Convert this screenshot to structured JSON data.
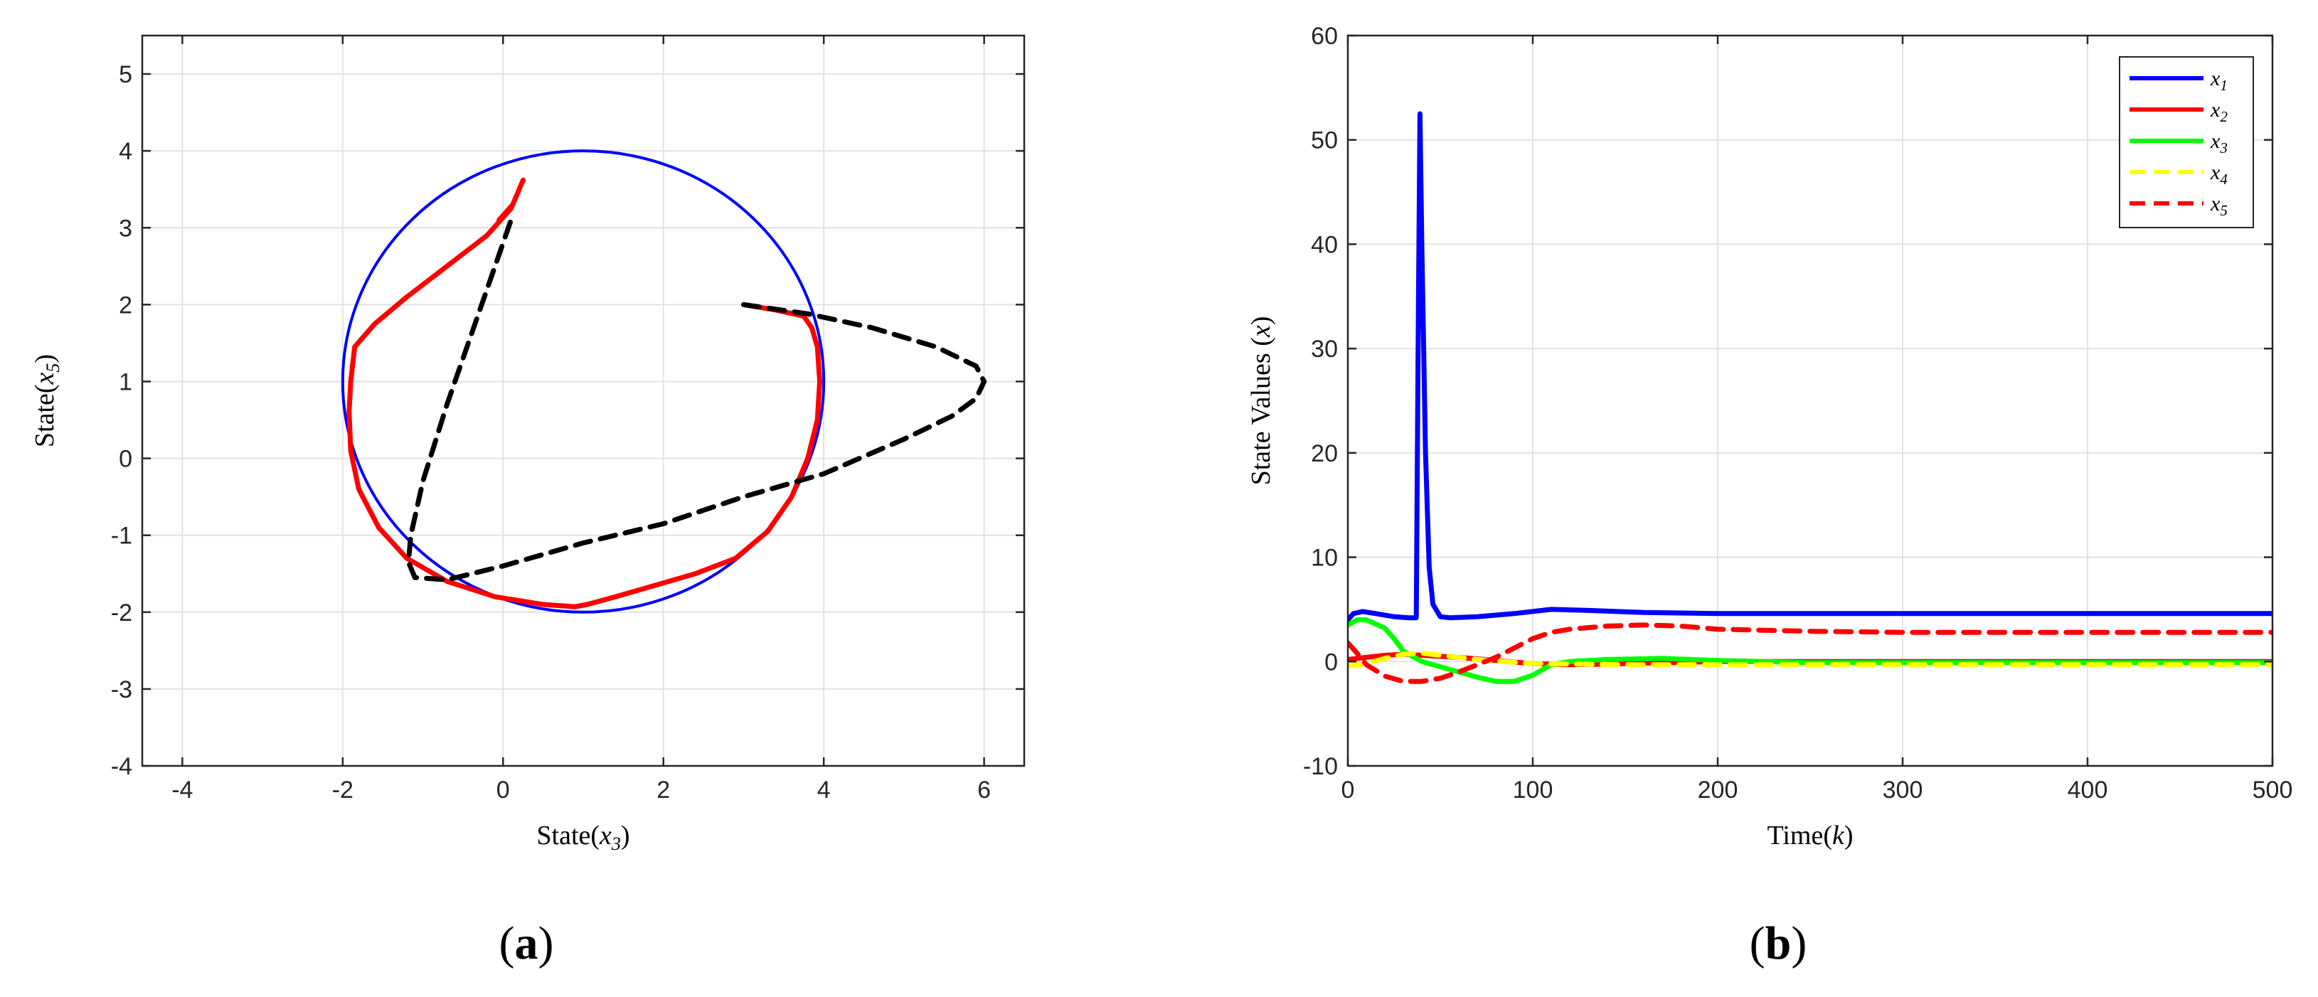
{
  "panels": [
    {
      "label_open": "(",
      "label_letter": "a",
      "label_close": ")"
    },
    {
      "label_open": "(",
      "label_letter": "b",
      "label_close": ")"
    }
  ],
  "chart_data": [
    {
      "type": "line",
      "panel": "a",
      "xlabel": {
        "prefix": "State(",
        "var": "x",
        "sub": "3",
        "suffix": ")"
      },
      "ylabel": {
        "prefix": "State(",
        "var": "x",
        "sub": "5",
        "suffix": ")"
      },
      "xlim": [
        -4.5,
        6.5
      ],
      "ylim": [
        -4,
        5.5
      ],
      "xticks": [
        -4,
        -2,
        0,
        2,
        4,
        6
      ],
      "yticks": [
        -4,
        -3,
        -2,
        -1,
        0,
        1,
        2,
        3,
        4,
        5
      ],
      "grid": true,
      "series": [
        {
          "kind": "circle",
          "center": [
            1,
            1
          ],
          "radius": 3,
          "color": "#0000ff",
          "style": "solid"
        },
        {
          "kind": "path",
          "color": "#ff0000",
          "style": "solid",
          "x": [
            3.0,
            3.4,
            3.75,
            3.85,
            3.92,
            3.95,
            3.92,
            3.8,
            3.6,
            3.3,
            2.9,
            2.4,
            1.9,
            1.4,
            1.05,
            0.9,
            0.5,
            -0.1,
            -0.7,
            -1.2,
            -1.55,
            -1.8,
            -1.9,
            -1.92,
            -1.9,
            -1.85,
            -1.6,
            -1.2,
            -0.7,
            -0.2,
            0.1,
            0.25,
            0.12,
            -0.05
          ],
          "y": [
            2.0,
            1.93,
            1.85,
            1.7,
            1.45,
            1.0,
            0.5,
            0.0,
            -0.5,
            -0.95,
            -1.3,
            -1.5,
            -1.65,
            -1.8,
            -1.9,
            -1.93,
            -1.9,
            -1.8,
            -1.6,
            -1.3,
            -0.9,
            -0.4,
            0.1,
            0.6,
            1.0,
            1.45,
            1.75,
            2.1,
            2.5,
            2.9,
            3.25,
            3.62,
            3.3,
            3.1
          ]
        },
        {
          "kind": "path",
          "color": "#000000",
          "style": "dashed",
          "x": [
            3.0,
            3.8,
            4.6,
            5.4,
            5.9,
            6.0,
            5.9,
            5.6,
            5.0,
            4.0,
            3.0,
            2.0,
            1.0,
            0.0,
            -0.7,
            -1.1,
            -1.18,
            -1.15,
            -1.0,
            -0.7,
            -0.4,
            -0.1,
            0.1
          ],
          "y": [
            2.0,
            1.88,
            1.7,
            1.45,
            1.2,
            1.0,
            0.78,
            0.55,
            0.25,
            -0.2,
            -0.5,
            -0.85,
            -1.1,
            -1.4,
            -1.58,
            -1.55,
            -1.35,
            -1.0,
            -0.3,
            0.7,
            1.6,
            2.5,
            3.1
          ]
        }
      ]
    },
    {
      "type": "line",
      "panel": "b",
      "xlabel": {
        "prefix": "Time(",
        "var": "k",
        "sub": "",
        "suffix": ")"
      },
      "ylabel": {
        "prefix": "State Values (",
        "var": "x",
        "sub": "",
        "suffix": ")"
      },
      "xlim": [
        0,
        500
      ],
      "ylim": [
        -10,
        60
      ],
      "xticks": [
        0,
        100,
        200,
        300,
        400,
        500
      ],
      "yticks": [
        -10,
        0,
        10,
        20,
        30,
        40,
        50,
        60
      ],
      "grid": true,
      "legend_position": "top-right",
      "series": [
        {
          "name": "x",
          "sub": "1",
          "color": "#0000ff",
          "style": "solid",
          "x": [
            0,
            3,
            8,
            15,
            25,
            33,
            37,
            38,
            39,
            40,
            42,
            44,
            46,
            50,
            55,
            70,
            90,
            110,
            130,
            160,
            200,
            250,
            300,
            400,
            500
          ],
          "y": [
            4.0,
            4.6,
            4.8,
            4.6,
            4.3,
            4.2,
            4.2,
            30.0,
            52.5,
            40.0,
            20.0,
            9.0,
            5.5,
            4.3,
            4.2,
            4.3,
            4.6,
            5.0,
            4.9,
            4.7,
            4.6,
            4.6,
            4.6,
            4.6,
            4.6
          ]
        },
        {
          "name": "x",
          "sub": "2",
          "color": "#ff0000",
          "style": "solid",
          "x": [
            0,
            10,
            20,
            30,
            40,
            60,
            80,
            100,
            120,
            150,
            200,
            300,
            400,
            500
          ],
          "y": [
            0.2,
            0.4,
            0.6,
            0.7,
            0.6,
            0.4,
            0.1,
            -0.2,
            -0.3,
            -0.2,
            0.0,
            0.0,
            0.0,
            0.0
          ]
        },
        {
          "name": "x",
          "sub": "3",
          "color": "#00ff00",
          "style": "solid",
          "x": [
            0,
            5,
            10,
            20,
            25,
            30,
            40,
            50,
            60,
            70,
            80,
            90,
            100,
            110,
            120,
            140,
            170,
            200,
            250,
            300,
            400,
            500
          ],
          "y": [
            3.5,
            4.0,
            4.0,
            3.2,
            2.2,
            1.0,
            0.0,
            -0.5,
            -1.0,
            -1.5,
            -1.9,
            -1.9,
            -1.3,
            -0.3,
            0.0,
            0.2,
            0.3,
            0.1,
            -0.1,
            -0.1,
            -0.1,
            -0.1
          ]
        },
        {
          "name": "x",
          "sub": "4",
          "color": "#ffff00",
          "style": "dashed",
          "x": [
            0,
            10,
            20,
            30,
            40,
            50,
            70,
            100,
            150,
            200,
            300,
            400,
            500
          ],
          "y": [
            -0.4,
            -0.2,
            0.3,
            0.7,
            0.8,
            0.6,
            0.2,
            -0.2,
            -0.3,
            -0.3,
            -0.3,
            -0.3,
            -0.3
          ]
        },
        {
          "name": "x",
          "sub": "5",
          "color": "#ff0000",
          "style": "dashed",
          "x": [
            0,
            5,
            10,
            20,
            30,
            40,
            50,
            60,
            70,
            80,
            90,
            100,
            110,
            120,
            140,
            160,
            180,
            200,
            250,
            300,
            400,
            500
          ],
          "y": [
            1.8,
            0.8,
            -0.3,
            -1.4,
            -1.9,
            -1.9,
            -1.6,
            -1.0,
            -0.3,
            0.4,
            1.3,
            2.2,
            2.8,
            3.1,
            3.4,
            3.5,
            3.4,
            3.1,
            2.9,
            2.8,
            2.8,
            2.8
          ]
        }
      ]
    }
  ]
}
